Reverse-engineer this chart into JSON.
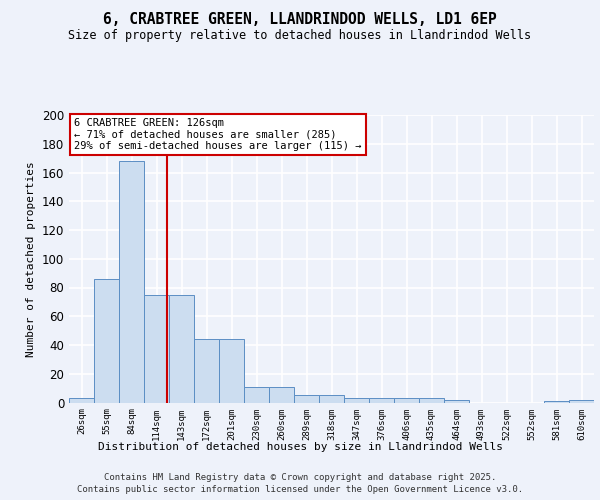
{
  "title": "6, CRABTREE GREEN, LLANDRINDOD WELLS, LD1 6EP",
  "subtitle": "Size of property relative to detached houses in Llandrindod Wells",
  "xlabel": "Distribution of detached houses by size in Llandrindod Wells",
  "ylabel": "Number of detached properties",
  "bar_values": [
    3,
    86,
    168,
    75,
    75,
    44,
    44,
    11,
    11,
    5,
    5,
    3,
    3,
    3,
    3,
    2,
    0,
    0,
    0,
    1,
    2
  ],
  "bin_labels": [
    "26sqm",
    "55sqm",
    "84sqm",
    "114sqm",
    "143sqm",
    "172sqm",
    "201sqm",
    "230sqm",
    "260sqm",
    "289sqm",
    "318sqm",
    "347sqm",
    "376sqm",
    "406sqm",
    "435sqm",
    "464sqm",
    "493sqm",
    "522sqm",
    "552sqm",
    "581sqm",
    "610sqm"
  ],
  "bar_color": "#ccddf0",
  "bar_edge_color": "#5b8ec4",
  "background_color": "#eef2fa",
  "grid_color": "#ffffff",
  "vline_color": "#cc0000",
  "annotation_text": "6 CRABTREE GREEN: 126sqm\n← 71% of detached houses are smaller (285)\n29% of semi-detached houses are larger (115) →",
  "annotation_box_color": "#ffffff",
  "annotation_border_color": "#cc0000",
  "footer_line1": "Contains HM Land Registry data © Crown copyright and database right 2025.",
  "footer_line2": "Contains public sector information licensed under the Open Government Licence v3.0.",
  "ylim": [
    0,
    200
  ],
  "yticks": [
    0,
    20,
    40,
    60,
    80,
    100,
    120,
    140,
    160,
    180,
    200
  ]
}
